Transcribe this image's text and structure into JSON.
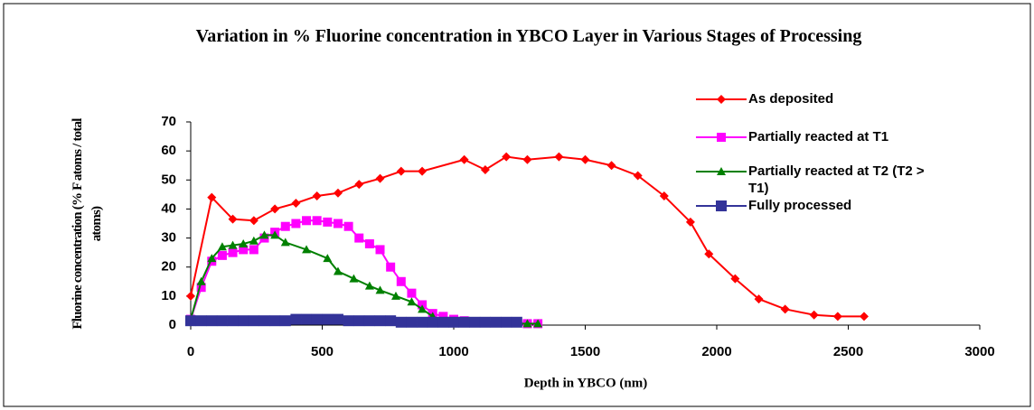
{
  "chart_data": {
    "type": "line",
    "title": "Variation in % Fluorine concentration in YBCO Layer in Various Stages of Processing",
    "x_label": "Depth in YBCO (nm)",
    "y_label": "Fluorine concentration (% F atoms / total atoms)",
    "xlim": [
      0,
      3000
    ],
    "xticks": [
      0,
      500,
      1000,
      1500,
      2000,
      2500,
      3000
    ],
    "ylim": [
      0,
      70
    ],
    "yticks": [
      0,
      10,
      20,
      30,
      40,
      50,
      60,
      70
    ],
    "grid": false,
    "legend": "upper right",
    "series": [
      {
        "name": "As deposited",
        "color": "#ff0000",
        "marker": "diamond",
        "x": [
          0,
          80,
          160,
          240,
          320,
          400,
          480,
          560,
          640,
          720,
          800,
          880,
          1040,
          1120,
          1200,
          1280,
          1400,
          1500,
          1600,
          1700,
          1800,
          1900,
          1970,
          2070,
          2160,
          2260,
          2370,
          2460,
          2560
        ],
        "values": [
          10,
          44,
          36.5,
          36,
          40,
          42,
          44.5,
          45.5,
          48.5,
          50.5,
          53,
          53,
          57,
          53.5,
          58,
          57,
          58,
          57,
          55,
          51.5,
          44.5,
          35.5,
          24.5,
          16,
          9,
          5.5,
          3.5,
          3,
          3
        ]
      },
      {
        "name": "Partially reacted at T1",
        "color": "#ff00ff",
        "marker": "square",
        "x": [
          0,
          40,
          80,
          120,
          160,
          200,
          240,
          280,
          320,
          360,
          400,
          440,
          480,
          520,
          560,
          600,
          640,
          680,
          720,
          760,
          800,
          840,
          880,
          920,
          960,
          1000,
          1040,
          1080,
          1120,
          1160,
          1200,
          1240,
          1280,
          1320
        ],
        "values": [
          2,
          13,
          22,
          24,
          25,
          26,
          26,
          30,
          32,
          34,
          35,
          36,
          36,
          35.5,
          35,
          34,
          30,
          28,
          26,
          20,
          15,
          11,
          7,
          4,
          3,
          2,
          1.5,
          1,
          1,
          1,
          1,
          1,
          0.5,
          0.5
        ]
      },
      {
        "name": "Partially reacted at T2 (T2 > T1)",
        "color": "#008000",
        "marker": "triangle",
        "x": [
          0,
          40,
          80,
          120,
          160,
          200,
          240,
          280,
          320,
          360,
          440,
          520,
          560,
          620,
          680,
          720,
          780,
          840,
          880,
          920,
          960,
          1040,
          1120,
          1200,
          1280,
          1320
        ],
        "values": [
          2,
          15,
          23,
          27,
          27.5,
          28,
          29,
          31,
          31,
          28.5,
          26,
          23,
          18.5,
          16,
          13.5,
          12,
          10,
          8,
          5.5,
          3,
          1,
          0.5,
          0.5,
          0.5,
          0.5,
          0.5
        ]
      },
      {
        "name": "Fully processed",
        "color": "#333399",
        "marker": "square",
        "x": [
          0,
          40,
          80,
          120,
          160,
          200,
          240,
          280,
          320,
          360,
          400,
          440,
          480,
          520,
          560,
          600,
          640,
          680,
          720,
          760,
          800,
          840,
          880,
          920,
          960,
          1000,
          1040,
          1080,
          1120,
          1160,
          1200,
          1240
        ],
        "values": [
          1.5,
          1.5,
          1.5,
          1.5,
          1.5,
          1.5,
          1.5,
          1.5,
          1.5,
          1.5,
          2,
          2,
          2,
          2,
          2,
          1.5,
          1.5,
          1.5,
          1.5,
          1.5,
          1,
          1,
          1,
          1,
          1,
          1,
          1,
          1,
          1,
          1,
          1,
          1
        ]
      }
    ]
  }
}
